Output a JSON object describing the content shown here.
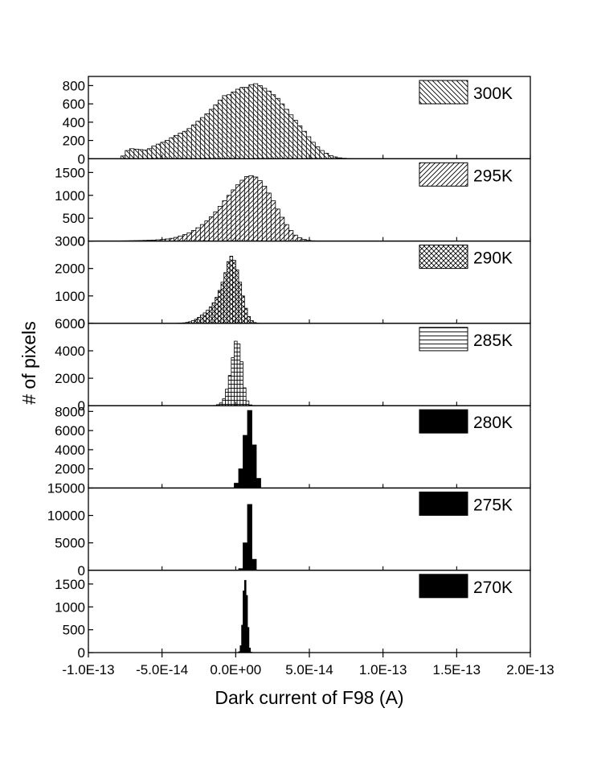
{
  "chart_data": {
    "type": "bar",
    "layout": "stacked-panels",
    "xlabel": "Dark current  of F98 (A)",
    "ylabel": "# of pixels",
    "xlim": [
      -1e-13,
      2e-13
    ],
    "x_tick_values": [
      -1e-13,
      -5e-14,
      0,
      5e-14,
      1e-13,
      1.5e-13,
      2e-13
    ],
    "x_tick_labels": [
      "-1.0E-13",
      "-5.0E-14",
      "0.0E+00",
      "5.0E-14",
      "1.0E-13",
      "1.5E-13",
      "2.0E-13"
    ],
    "legend_position": "top-right",
    "panels": [
      {
        "name": "300K",
        "pattern": "hatch-backslash",
        "ylim": [
          0,
          900
        ],
        "y_ticks": [
          0,
          200,
          400,
          600,
          800
        ],
        "bin_start": -7.8e-14,
        "bin_width": 3e-15,
        "values": [
          30,
          90,
          110,
          105,
          100,
          95,
          110,
          140,
          160,
          180,
          200,
          230,
          255,
          280,
          300,
          330,
          370,
          410,
          450,
          490,
          540,
          590,
          640,
          690,
          700,
          730,
          760,
          780,
          780,
          810,
          820,
          800,
          770,
          740,
          700,
          660,
          600,
          540,
          480,
          420,
          360,
          300,
          240,
          180,
          130,
          90,
          60,
          35,
          20,
          10,
          5,
          2
        ]
      },
      {
        "name": "295K",
        "pattern": "hatch-slash",
        "ylim": [
          0,
          1800
        ],
        "y_ticks": [
          0,
          500,
          1000,
          1500
        ],
        "bin_start": -7.8e-14,
        "bin_width": 3e-15,
        "values": [
          5,
          6,
          8,
          10,
          12,
          15,
          18,
          22,
          28,
          35,
          45,
          60,
          80,
          110,
          140,
          180,
          230,
          290,
          360,
          440,
          530,
          640,
          760,
          880,
          1000,
          1120,
          1230,
          1330,
          1410,
          1430,
          1400,
          1320,
          1200,
          1050,
          880,
          700,
          520,
          360,
          230,
          130,
          70,
          35,
          15,
          6,
          2
        ]
      },
      {
        "name": "290K",
        "pattern": "crosshatch",
        "ylim": [
          0,
          3000
        ],
        "y_ticks": [
          0,
          1000,
          2000,
          3000
        ],
        "bin_start": -4e-14,
        "bin_width": 2e-15,
        "values": [
          5,
          10,
          20,
          35,
          60,
          100,
          150,
          220,
          300,
          380,
          480,
          600,
          750,
          950,
          1200,
          1500,
          1850,
          2250,
          2450,
          2300,
          1950,
          1500,
          1000,
          550,
          250,
          100,
          30,
          5
        ]
      },
      {
        "name": "285K",
        "pattern": "horizontal-lines",
        "ylim": [
          0,
          6000
        ],
        "y_ticks": [
          0,
          2000,
          4000,
          6000
        ],
        "bin_start": -1.5e-14,
        "bin_width": 2e-15,
        "values": [
          20,
          80,
          200,
          500,
          1200,
          2200,
          3500,
          4700,
          4500,
          3200,
          1300,
          350,
          60,
          10
        ]
      },
      {
        "name": "280K",
        "pattern": "solid",
        "ylim": [
          0,
          8600
        ],
        "y_ticks": [
          2000,
          4000,
          6000,
          8000
        ],
        "bin_start": -1e-15,
        "bin_width": 3e-15,
        "values": [
          500,
          2000,
          5500,
          8100,
          4500,
          1000
        ]
      },
      {
        "name": "275K",
        "pattern": "solid",
        "ylim": [
          0,
          15000
        ],
        "y_ticks": [
          0,
          5000,
          10000,
          15000
        ],
        "bin_start": 2e-15,
        "bin_width": 3e-15,
        "values": [
          300,
          5000,
          12000,
          2000
        ]
      },
      {
        "name": "270K",
        "pattern": "solid",
        "ylim": [
          0,
          1800
        ],
        "y_ticks": [
          0,
          500,
          1000,
          1500
        ],
        "bin_start": 2e-15,
        "bin_width": 1e-15,
        "values": [
          20,
          150,
          600,
          1350,
          1580,
          1250,
          550,
          100,
          10
        ]
      }
    ]
  }
}
